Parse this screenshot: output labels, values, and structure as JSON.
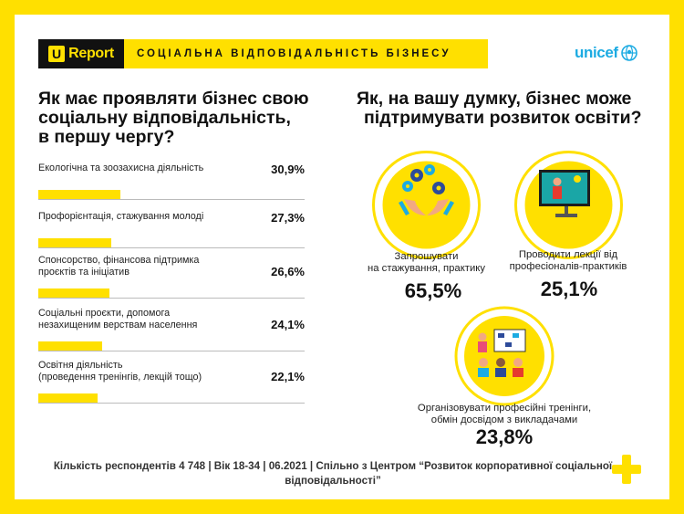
{
  "header": {
    "logo_u": "U",
    "logo_text": "Report",
    "title": "СОЦІАЛЬНА ВІДПОВІДАЛЬНІСТЬ БІЗНЕСУ",
    "partner_logo": "unicef"
  },
  "left_question": {
    "line1": "Як має проявляти бізнес свою",
    "line2": "соціальну відповідальність,",
    "line3": "в першу чергу?"
  },
  "right_question": {
    "line1": "Як, на вашу думку, бізнес може",
    "line2": "підтримувати розвиток освіти?"
  },
  "chart_data": [
    {
      "type": "bar",
      "orientation": "horizontal",
      "title": "Як має проявляти бізнес свою соціальну відповідальність, в першу чергу?",
      "categories": [
        [
          "Екологічна та зоозахисна діяльність"
        ],
        [
          "Профорієнтація, стажування молоді"
        ],
        [
          "Спонсорство, фінансова підтримка",
          "проєктів та ініціатив"
        ],
        [
          "Соціальні проєкти, допомога",
          "незахищеним верствам населення"
        ],
        [
          "Освітня діяльність",
          "(проведення тренінгів, лекцій тощо)"
        ]
      ],
      "values": [
        30.9,
        27.3,
        26.6,
        24.1,
        22.1
      ],
      "value_labels": [
        "30,9%",
        "27,3%",
        "26,6%",
        "24,1%",
        "22,1%"
      ],
      "bar_color": "#FFE000",
      "xlim": [
        0,
        100
      ]
    },
    {
      "type": "bubble",
      "title": "Як, на вашу думку, бізнес може підтримувати розвиток освіти?",
      "items": [
        {
          "label_lines": [
            "Запрошувати",
            "на стажування, практику"
          ],
          "value": 65.5,
          "value_label": "65,5%",
          "icon": "gears-hands-icon"
        },
        {
          "label_lines": [
            "Проводити лекції від",
            "професіоналів-практиків"
          ],
          "value": 25.1,
          "value_label": "25,1%",
          "icon": "lecture-screen-icon"
        },
        {
          "label_lines": [
            "Організовувати професійні тренінги,",
            "обмін досвідом з викладачами"
          ],
          "value": 23.8,
          "value_label": "23,8%",
          "icon": "training-group-icon"
        }
      ],
      "circle_color": "#FFE000"
    }
  ],
  "footer": {
    "line1": "Кількість респондентів 4 748 |  Вік 18-34 | 06.2021 | Спільно з Центром “Розвиток корпоративної соціальної",
    "line2": "відповідальності”"
  },
  "colors": {
    "accent": "#FFE000",
    "dark": "#111111",
    "unicef": "#1CABE2"
  }
}
